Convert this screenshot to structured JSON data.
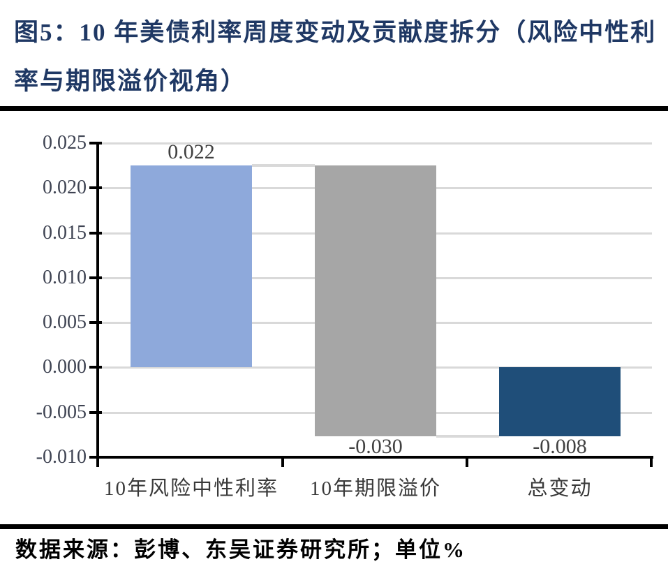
{
  "header": {
    "title": "图5：10 年美债利率周度变动及贡献度拆分（风险中性利率与期限溢价视角）",
    "title_color": "#1F3864"
  },
  "footer": {
    "source": "数据来源：彭博、东吴证券研究所；单位%"
  },
  "chart_data": {
    "type": "bar",
    "subtype": "waterfall",
    "title": "",
    "xlabel": "",
    "ylabel": "",
    "categories": [
      "10年风险中性利率",
      "10年期限溢价",
      "总变动"
    ],
    "values": [
      0.022,
      -0.03,
      -0.008
    ],
    "bars": [
      {
        "category": "10年风险中性利率",
        "label": "0.022",
        "label_position": "above",
        "from": 0,
        "to": 0.0225,
        "color": "#8EA9DB"
      },
      {
        "category": "10年期限溢价",
        "label": "-0.030",
        "label_position": "below",
        "from": 0.0225,
        "to": -0.0077,
        "color": "#A6A6A6"
      },
      {
        "category": "总变动",
        "label": "-0.008",
        "label_position": "below",
        "from": 0,
        "to": -0.0077,
        "color": "#1F4E79"
      }
    ],
    "y_axis": {
      "min": -0.01,
      "max": 0.025,
      "step": 0.005,
      "tick_labels": [
        "0.025",
        "0.020",
        "0.015",
        "0.010",
        "0.005",
        "0.000",
        "-0.005",
        "-0.010"
      ]
    },
    "grid": true,
    "legend": false,
    "gridline_color": "#D9D9D9",
    "axis_color": "#000000",
    "connector_color": "#D9D9D9",
    "value_label_color": "#404040",
    "tick_label_color": "#3E4352",
    "category_label_color": "#3A3A3A"
  }
}
